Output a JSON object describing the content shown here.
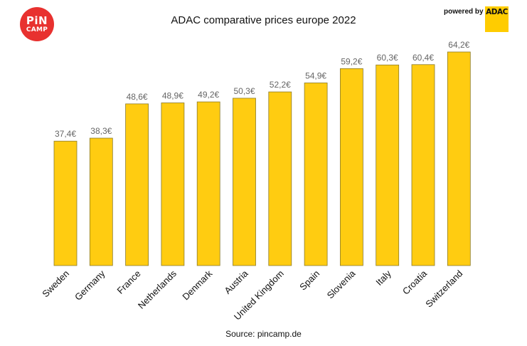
{
  "header": {
    "title": "ADAC comparative prices europe 2022",
    "logo_line1": "PiN",
    "logo_line2": "CAMP",
    "powered_by": "powered by",
    "adac": "ADAC"
  },
  "footer": {
    "source": "Source: pincamp.de"
  },
  "chart_data": {
    "type": "bar",
    "title": "ADAC comparative prices europe 2022",
    "xlabel": "",
    "ylabel": "",
    "categories": [
      "Sweden",
      "Germany",
      "France",
      "Netherlands",
      "Denmark",
      "Austria",
      "United Kingdom",
      "Spain",
      "Slovenia",
      "Italy",
      "Croatia",
      "Switzerland"
    ],
    "values": [
      37.4,
      38.3,
      48.6,
      48.9,
      49.2,
      50.3,
      52.2,
      54.9,
      59.2,
      60.3,
      60.4,
      64.2
    ],
    "value_labels": [
      "37,4€",
      "38,3€",
      "48,6€",
      "48,9€",
      "49,2€",
      "50,3€",
      "52,2€",
      "54,9€",
      "59,2€",
      "60,3€",
      "60,4€",
      "64,2€"
    ],
    "ylim": [
      0,
      64.2
    ],
    "grid": false,
    "bar_color": "#ffcc11",
    "bar_edge_color": "#8a7a2a",
    "label_color": "#666666"
  }
}
